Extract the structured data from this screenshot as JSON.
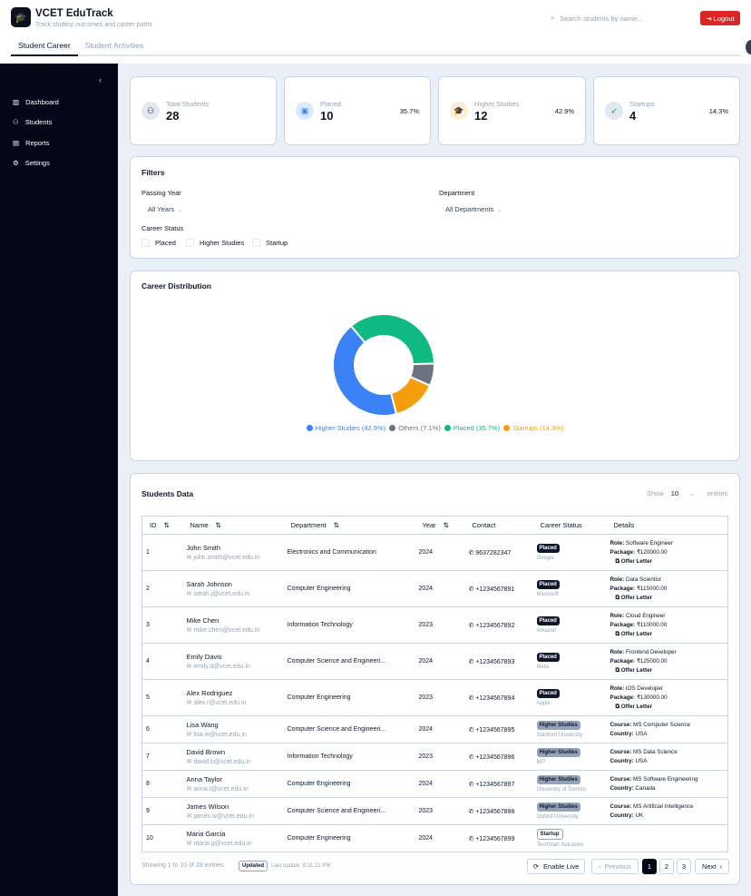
{
  "app": {
    "title": "VCET EduTrack",
    "subtitle": "Track student outcomes and career paths",
    "logo_icon": "graduation-cap-icon"
  },
  "search": {
    "placeholder": "Search students by name..."
  },
  "logout_label": "Logout",
  "tabs": [
    {
      "label": "Student Career"
    },
    {
      "label": "Student Activities"
    }
  ],
  "sidebar": {
    "items": [
      {
        "label": "Dashboard",
        "icon": "bar-chart-icon"
      },
      {
        "label": "Students",
        "icon": "users-icon"
      },
      {
        "label": "Reports",
        "icon": "file-icon"
      },
      {
        "label": "Settings",
        "icon": "gear-icon"
      }
    ]
  },
  "stats": [
    {
      "label": "Total Students",
      "value": "28",
      "pct": ""
    },
    {
      "label": "Placed",
      "value": "10",
      "pct": "35.7%"
    },
    {
      "label": "Higher Studies",
      "value": "12",
      "pct": "42.9%"
    },
    {
      "label": "Startups",
      "value": "4",
      "pct": "14.3%"
    }
  ],
  "filters": {
    "title": "Filters",
    "year_label": "Passing Year",
    "year_value": "All Years",
    "dept_label": "Department",
    "dept_value": "All Departments",
    "status_label": "Career Status",
    "status_options": [
      "Placed",
      "Higher Studies",
      "Startup"
    ]
  },
  "chart_data": {
    "type": "pie",
    "title": "Career Distribution",
    "donut": true,
    "slices": [
      {
        "label": "Placed",
        "value": 35.7,
        "color": "#10b981",
        "legend": "Placed (35.7%)"
      },
      {
        "label": "Others",
        "value": 7.1,
        "color": "#6b7280",
        "legend": "Others (7.1%)"
      },
      {
        "label": "Startups",
        "value": 14.3,
        "color": "#f59e0b",
        "legend": "Startups (14.3%)"
      },
      {
        "label": "Higher Studies",
        "value": 42.9,
        "color": "#3b82f6",
        "legend": "Higher Studies (42.9%)"
      }
    ],
    "legend_order": [
      3,
      1,
      0,
      2
    ],
    "legend_placement": "bottom"
  },
  "table": {
    "title": "Students Data",
    "show_label": "Show",
    "entries_value": "10",
    "entries_label": "entries",
    "columns": [
      "ID",
      "Name",
      "Department",
      "Year",
      "Contact",
      "Career Status",
      "Details"
    ],
    "rows": [
      {
        "id": "1",
        "name": "John Smith",
        "email": "john.smith@vcet.edu.in",
        "dept": "Electronics and Communication",
        "year": "2024",
        "phone": "9637282347",
        "status": "Placed",
        "org": "Google",
        "role": "Software Engineer",
        "package": "₹120000.00"
      },
      {
        "id": "2",
        "name": "Sarah Johnson",
        "email": "sarah.j@vcet.edu.in",
        "dept": "Computer Engineering",
        "year": "2024",
        "phone": "+1234567891",
        "status": "Placed",
        "org": "Microsoft",
        "role": "Data Scientist",
        "package": "₹115000.00"
      },
      {
        "id": "3",
        "name": "Mike Chen",
        "email": "mike.chen@vcet.edu.in",
        "dept": "Information Technology",
        "year": "2023",
        "phone": "+1234567892",
        "status": "Placed",
        "org": "Amazon",
        "role": "Cloud Engineer",
        "package": "₹110000.00"
      },
      {
        "id": "4",
        "name": "Emily Davis",
        "email": "emily.d@vcet.edu.in",
        "dept": "Computer Science and Engineeri...",
        "year": "2024",
        "phone": "+1234567893",
        "status": "Placed",
        "org": "Meta",
        "role": "Frontend Developer",
        "package": "₹125000.00"
      },
      {
        "id": "5",
        "name": "Alex Rodriguez",
        "email": "alex.r@vcet.edu.in",
        "dept": "Computer Engineering",
        "year": "2023",
        "phone": "+1234567894",
        "status": "Placed",
        "org": "Apple",
        "role": "iOS Developer",
        "package": "₹130000.00"
      },
      {
        "id": "6",
        "name": "Lisa Wang",
        "email": "lisa.w@vcet.edu.in",
        "dept": "Computer Science and Engineeri...",
        "year": "2024",
        "phone": "+1234567895",
        "status": "Higher Studies",
        "org": "Stanford University",
        "course": "MS Computer Science",
        "country": "USA"
      },
      {
        "id": "7",
        "name": "David Brown",
        "email": "david.b@vcet.edu.in",
        "dept": "Information Technology",
        "year": "2023",
        "phone": "+1234567896",
        "status": "Higher Studies",
        "org": "MIT",
        "course": "MS Data Science",
        "country": "USA"
      },
      {
        "id": "8",
        "name": "Anna Taylor",
        "email": "anna.t@vcet.edu.in",
        "dept": "Computer Engineering",
        "year": "2024",
        "phone": "+1234567897",
        "status": "Higher Studies",
        "org": "University of Toronto",
        "course": "MS Software Engineering",
        "country": "Canada"
      },
      {
        "id": "9",
        "name": "James Wilson",
        "email": "james.w@vcet.edu.in",
        "dept": "Computer Science and Engineeri...",
        "year": "2023",
        "phone": "+1234567898",
        "status": "Higher Studies",
        "org": "Oxford University",
        "course": "MS Artificial Intelligence",
        "country": "UK"
      },
      {
        "id": "10",
        "name": "Maria Garcia",
        "email": "maria.g@vcet.edu.in",
        "dept": "Computer Engineering",
        "year": "2024",
        "phone": "+1234567899",
        "status": "Startup",
        "org": "TechStart Solutions"
      }
    ],
    "role_label": "Role:",
    "package_label": "Package:",
    "offer_label": "Offer Letter",
    "course_label": "Course:",
    "country_label": "Country:",
    "showing": "Showing 1 to 10 of 28 entries",
    "updated_badge": "Updated",
    "last_update": "Last update: 8:31:21 PM",
    "enable_live": "Enable Live",
    "previous": "Previous",
    "pages": [
      "1",
      "2",
      "3"
    ],
    "next": "Next"
  }
}
